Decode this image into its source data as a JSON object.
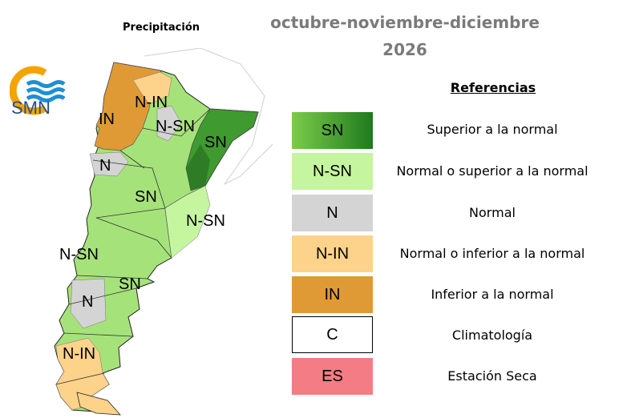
{
  "header": {
    "subtitle": "Precipitación",
    "period": "octubre-noviembre-diciembre",
    "year": "2026"
  },
  "logo": {
    "text": "SMN",
    "icon": "smn-logo-icon"
  },
  "map": {
    "region_labels": [
      "N-IN",
      "IN",
      "N-SN",
      "SN",
      "N",
      "SN",
      "N-SN",
      "N-SN",
      "SN",
      "N",
      "N-IN"
    ]
  },
  "legend": {
    "title": "Referencias",
    "items": [
      {
        "code": "SN",
        "description": "Superior a la normal",
        "color": "#5cb833",
        "color2": "#1e7a1e"
      },
      {
        "code": "N-SN",
        "description": "Normal o superior a la normal",
        "color": "#c6f5a0"
      },
      {
        "code": "N",
        "description": "Normal",
        "color": "#d4d4d4"
      },
      {
        "code": "N-IN",
        "description": "Normal o inferior a la normal",
        "color": "#fdd28a"
      },
      {
        "code": "IN",
        "description": "Inferior a la normal",
        "color": "#df9a36"
      },
      {
        "code": "C",
        "description": "Climatología",
        "color": "#ffffff"
      },
      {
        "code": "ES",
        "description": "Estación Seca",
        "color": "#f47c84"
      }
    ]
  }
}
